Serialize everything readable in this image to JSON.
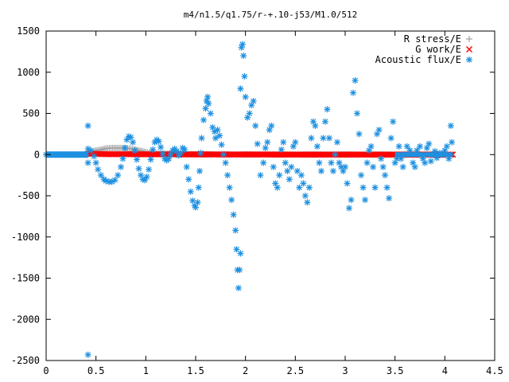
{
  "chart_data": {
    "type": "scatter",
    "title": "m4/n1.5/q1.75/r-+.10-j53/M1.0/512",
    "xlabel": "",
    "ylabel": "",
    "xlim": [
      0,
      4.5
    ],
    "ylim": [
      -2500,
      1500
    ],
    "x_ticks": [
      "0",
      "0.5",
      "1",
      "1.5",
      "2",
      "2.5",
      "3",
      "3.5",
      "4",
      "4.5"
    ],
    "y_ticks": [
      "1500",
      "1000",
      "500",
      "0",
      "-500",
      "-1000",
      "-1500",
      "-2000",
      "-2500"
    ],
    "x_tick_values": [
      0,
      0.5,
      1,
      1.5,
      2,
      2.5,
      3,
      3.5,
      4,
      4.5
    ],
    "y_tick_values": [
      1500,
      1000,
      500,
      0,
      -500,
      -1000,
      -1500,
      -2000,
      -2500
    ],
    "grid": false,
    "legend_position": "top-right",
    "series": [
      {
        "name": "R stress/E",
        "marker": "plus",
        "color": "#a0a0a0",
        "points": [
          [
            0.45,
            30
          ],
          [
            0.5,
            50
          ],
          [
            0.55,
            60
          ],
          [
            0.6,
            75
          ],
          [
            0.65,
            80
          ],
          [
            0.7,
            80
          ],
          [
            0.75,
            80
          ],
          [
            0.8,
            78
          ],
          [
            0.85,
            70
          ],
          [
            0.9,
            60
          ],
          [
            0.95,
            45
          ],
          [
            1.0,
            30
          ],
          [
            1.05,
            20
          ],
          [
            1.1,
            15
          ],
          [
            1.2,
            10
          ],
          [
            1.3,
            8
          ],
          [
            1.4,
            5
          ],
          [
            1.5,
            3
          ],
          [
            1.6,
            2
          ],
          [
            1.8,
            2
          ],
          [
            2.0,
            2
          ],
          [
            2.5,
            1
          ],
          [
            3.0,
            1
          ],
          [
            3.5,
            0
          ],
          [
            4.0,
            0
          ]
        ]
      },
      {
        "name": "G work/E",
        "marker": "x",
        "color": "#ff0000",
        "points": [
          [
            0.42,
            10
          ],
          [
            0.5,
            8
          ],
          [
            0.6,
            5
          ],
          [
            0.7,
            5
          ],
          [
            0.8,
            5
          ],
          [
            0.9,
            4
          ],
          [
            1.0,
            4
          ],
          [
            1.1,
            3
          ],
          [
            1.2,
            3
          ],
          [
            1.3,
            3
          ],
          [
            1.4,
            2
          ],
          [
            1.5,
            2
          ],
          [
            1.6,
            2
          ],
          [
            1.7,
            2
          ],
          [
            1.8,
            1
          ],
          [
            1.9,
            1
          ],
          [
            2.0,
            1
          ],
          [
            2.2,
            1
          ],
          [
            2.4,
            0
          ],
          [
            2.6,
            0
          ],
          [
            2.8,
            0
          ],
          [
            3.0,
            0
          ],
          [
            3.2,
            0
          ],
          [
            3.4,
            0
          ],
          [
            3.6,
            0
          ],
          [
            3.8,
            0
          ],
          [
            4.0,
            0
          ],
          [
            4.08,
            0
          ]
        ]
      },
      {
        "name": "Acoustic flux/E",
        "marker": "star",
        "color": "#1e90e0",
        "points": [
          [
            0.0,
            0
          ],
          [
            0.1,
            0
          ],
          [
            0.2,
            0
          ],
          [
            0.3,
            0
          ],
          [
            0.4,
            0
          ],
          [
            0.42,
            350
          ],
          [
            0.42,
            -2430
          ],
          [
            0.42,
            70
          ],
          [
            0.42,
            -100
          ],
          [
            0.45,
            50
          ],
          [
            0.48,
            -20
          ],
          [
            0.5,
            -100
          ],
          [
            0.52,
            -180
          ],
          [
            0.55,
            -250
          ],
          [
            0.58,
            -300
          ],
          [
            0.6,
            -320
          ],
          [
            0.63,
            -330
          ],
          [
            0.66,
            -330
          ],
          [
            0.69,
            -310
          ],
          [
            0.72,
            -250
          ],
          [
            0.75,
            -150
          ],
          [
            0.77,
            -50
          ],
          [
            0.79,
            80
          ],
          [
            0.81,
            180
          ],
          [
            0.83,
            220
          ],
          [
            0.85,
            210
          ],
          [
            0.87,
            150
          ],
          [
            0.89,
            50
          ],
          [
            0.91,
            -60
          ],
          [
            0.93,
            -170
          ],
          [
            0.95,
            -250
          ],
          [
            0.97,
            -300
          ],
          [
            0.99,
            -310
          ],
          [
            1.01,
            -270
          ],
          [
            1.03,
            -180
          ],
          [
            1.05,
            -60
          ],
          [
            1.07,
            60
          ],
          [
            1.09,
            150
          ],
          [
            1.11,
            180
          ],
          [
            1.13,
            160
          ],
          [
            1.15,
            90
          ],
          [
            1.17,
            10
          ],
          [
            1.19,
            -50
          ],
          [
            1.21,
            -70
          ],
          [
            1.23,
            -50
          ],
          [
            1.25,
            0
          ],
          [
            1.27,
            50
          ],
          [
            1.29,
            70
          ],
          [
            1.31,
            40
          ],
          [
            1.33,
            -10
          ],
          [
            1.35,
            20
          ],
          [
            1.37,
            80
          ],
          [
            1.39,
            60
          ],
          [
            1.41,
            -150
          ],
          [
            1.43,
            -300
          ],
          [
            1.45,
            -450
          ],
          [
            1.47,
            -560
          ],
          [
            1.49,
            -620
          ],
          [
            1.5,
            -640
          ],
          [
            1.52,
            -580
          ],
          [
            1.53,
            -400
          ],
          [
            1.54,
            -200
          ],
          [
            1.55,
            20
          ],
          [
            1.56,
            200
          ],
          [
            1.58,
            420
          ],
          [
            1.6,
            560
          ],
          [
            1.61,
            650
          ],
          [
            1.62,
            700
          ],
          [
            1.63,
            620
          ],
          [
            1.65,
            500
          ],
          [
            1.67,
            330
          ],
          [
            1.69,
            280
          ],
          [
            1.7,
            200
          ],
          [
            1.72,
            300
          ],
          [
            1.74,
            230
          ],
          [
            1.76,
            120
          ],
          [
            1.78,
            0
          ],
          [
            1.8,
            -100
          ],
          [
            1.82,
            -250
          ],
          [
            1.84,
            -400
          ],
          [
            1.86,
            -550
          ],
          [
            1.88,
            -730
          ],
          [
            1.9,
            -920
          ],
          [
            1.91,
            -1150
          ],
          [
            1.92,
            -1400
          ],
          [
            1.93,
            -1620
          ],
          [
            1.94,
            -1400
          ],
          [
            1.95,
            -1200
          ],
          [
            1.95,
            800
          ],
          [
            1.96,
            1300
          ],
          [
            1.97,
            1340
          ],
          [
            1.98,
            1200
          ],
          [
            1.99,
            950
          ],
          [
            2.0,
            700
          ],
          [
            2.02,
            450
          ],
          [
            2.04,
            500
          ],
          [
            2.06,
            600
          ],
          [
            2.08,
            650
          ],
          [
            2.1,
            350
          ],
          [
            2.12,
            130
          ],
          [
            2.15,
            -250
          ],
          [
            2.18,
            -100
          ],
          [
            2.2,
            80
          ],
          [
            2.22,
            150
          ],
          [
            2.24,
            300
          ],
          [
            2.26,
            350
          ],
          [
            2.28,
            -150
          ],
          [
            2.3,
            -350
          ],
          [
            2.32,
            -400
          ],
          [
            2.34,
            -250
          ],
          [
            2.36,
            60
          ],
          [
            2.38,
            150
          ],
          [
            2.4,
            -100
          ],
          [
            2.42,
            -200
          ],
          [
            2.44,
            -300
          ],
          [
            2.46,
            -150
          ],
          [
            2.48,
            100
          ],
          [
            2.5,
            150
          ],
          [
            2.52,
            -200
          ],
          [
            2.54,
            -400
          ],
          [
            2.56,
            -250
          ],
          [
            2.58,
            -350
          ],
          [
            2.6,
            -500
          ],
          [
            2.62,
            -580
          ],
          [
            2.64,
            -400
          ],
          [
            2.66,
            200
          ],
          [
            2.68,
            400
          ],
          [
            2.7,
            350
          ],
          [
            2.72,
            100
          ],
          [
            2.74,
            -100
          ],
          [
            2.76,
            -200
          ],
          [
            2.78,
            200
          ],
          [
            2.8,
            400
          ],
          [
            2.82,
            550
          ],
          [
            2.84,
            200
          ],
          [
            2.86,
            -100
          ],
          [
            2.88,
            -200
          ],
          [
            2.9,
            0
          ],
          [
            2.92,
            150
          ],
          [
            2.94,
            -100
          ],
          [
            2.96,
            -150
          ],
          [
            2.98,
            -200
          ],
          [
            3.0,
            -150
          ],
          [
            3.02,
            -350
          ],
          [
            3.04,
            -650
          ],
          [
            3.06,
            -550
          ],
          [
            3.08,
            750
          ],
          [
            3.1,
            900
          ],
          [
            3.12,
            500
          ],
          [
            3.14,
            250
          ],
          [
            3.16,
            -250
          ],
          [
            3.18,
            -400
          ],
          [
            3.2,
            -550
          ],
          [
            3.22,
            -100
          ],
          [
            3.24,
            50
          ],
          [
            3.26,
            100
          ],
          [
            3.28,
            -150
          ],
          [
            3.3,
            -400
          ],
          [
            3.32,
            250
          ],
          [
            3.34,
            300
          ],
          [
            3.36,
            -50
          ],
          [
            3.38,
            -150
          ],
          [
            3.4,
            -250
          ],
          [
            3.42,
            -400
          ],
          [
            3.44,
            -530
          ],
          [
            3.46,
            200
          ],
          [
            3.48,
            400
          ],
          [
            3.5,
            -100
          ],
          [
            3.52,
            -50
          ],
          [
            3.54,
            100
          ],
          [
            3.56,
            -50
          ],
          [
            3.58,
            -150
          ],
          [
            3.6,
            0
          ],
          [
            3.62,
            100
          ],
          [
            3.65,
            50
          ],
          [
            3.68,
            -100
          ],
          [
            3.7,
            -150
          ],
          [
            3.72,
            50
          ],
          [
            3.75,
            100
          ],
          [
            3.78,
            -50
          ],
          [
            3.8,
            -100
          ],
          [
            3.82,
            80
          ],
          [
            3.84,
            130
          ],
          [
            3.86,
            -80
          ],
          [
            3.88,
            0
          ],
          [
            3.9,
            40
          ],
          [
            3.92,
            -40
          ],
          [
            3.95,
            20
          ],
          [
            3.98,
            0
          ],
          [
            4.0,
            50
          ],
          [
            4.02,
            100
          ],
          [
            4.04,
            -50
          ],
          [
            4.06,
            350
          ],
          [
            4.07,
            150
          ]
        ]
      }
    ]
  }
}
